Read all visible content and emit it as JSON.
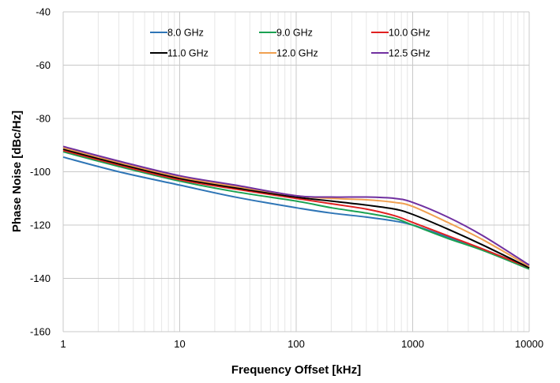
{
  "chart_data": {
    "type": "line",
    "xlabel": "Frequency Offset [kHz]",
    "ylabel": "Phase Noise [dBc/Hz]",
    "x_scale": "log",
    "xlim": [
      1,
      10000
    ],
    "ylim": [
      -160,
      -40
    ],
    "x_ticks": [
      1,
      10,
      100,
      1000,
      10000
    ],
    "x_tick_labels": [
      "1",
      "10",
      "100",
      "1000",
      "10000"
    ],
    "y_ticks": [
      -160,
      -140,
      -120,
      -100,
      -80,
      -60,
      -40
    ],
    "y_tick_labels": [
      "-160",
      "-140",
      "-120",
      "-100",
      "-80",
      "-60",
      "-40"
    ],
    "grid": true,
    "legend_position": "top",
    "x": [
      1,
      3,
      10,
      30,
      100,
      200,
      400,
      700,
      1000,
      2000,
      4000,
      10000
    ],
    "series": [
      {
        "name": "8.0 GHz",
        "color": "#2e75b6",
        "values": [
          -94.5,
          -100.0,
          -105.0,
          -109.5,
          -113.5,
          -115.5,
          -117.0,
          -118.5,
          -120.0,
          -124.5,
          -129.0,
          -136.0
        ]
      },
      {
        "name": "9.0 GHz",
        "color": "#1aa152",
        "values": [
          -92.5,
          -98.0,
          -103.5,
          -107.5,
          -111.0,
          -113.5,
          -115.5,
          -117.5,
          -120.0,
          -125.0,
          -129.5,
          -136.5
        ]
      },
      {
        "name": "10.0 GHz",
        "color": "#e02020",
        "values": [
          -92.0,
          -97.5,
          -103.0,
          -106.5,
          -110.0,
          -112.0,
          -114.0,
          -116.5,
          -119.0,
          -124.0,
          -129.0,
          -136.0
        ]
      },
      {
        "name": "11.0 GHz",
        "color": "#000000",
        "values": [
          -91.5,
          -97.0,
          -102.5,
          -106.0,
          -109.5,
          -111.0,
          -112.5,
          -114.0,
          -116.0,
          -121.5,
          -127.5,
          -136.0
        ]
      },
      {
        "name": "12.0 GHz",
        "color": "#f0a050",
        "values": [
          -91.0,
          -96.5,
          -102.0,
          -105.5,
          -109.0,
          -110.0,
          -110.5,
          -111.5,
          -113.0,
          -119.0,
          -125.5,
          -135.5
        ]
      },
      {
        "name": "12.5 GHz",
        "color": "#7030a0",
        "values": [
          -90.5,
          -96.0,
          -101.5,
          -105.0,
          -109.0,
          -109.5,
          -109.5,
          -110.0,
          -111.5,
          -117.0,
          -124.0,
          -135.0
        ]
      }
    ]
  }
}
